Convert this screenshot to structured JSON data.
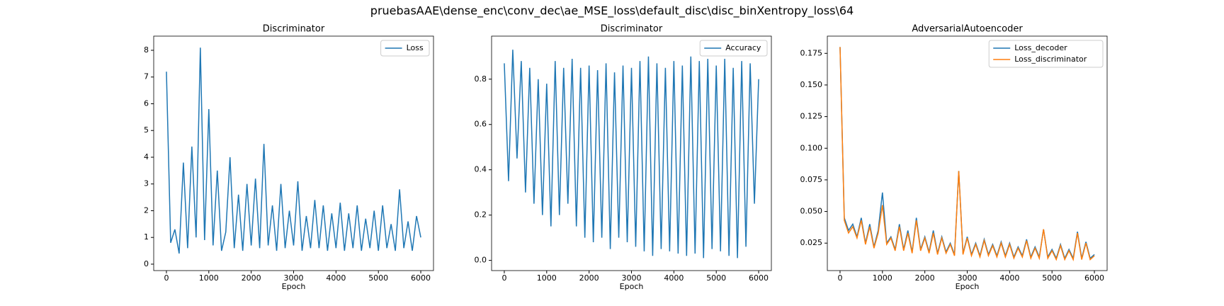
{
  "title": "pruebasAAE\\dense_enc\\conv_dec\\ae_MSE_loss\\default_disc\\disc_binXentropy_loss\\64",
  "chart_data": [
    {
      "type": "line",
      "title": "Discriminator",
      "xlabel": "Epoch",
      "legend": "upper right",
      "grid": false,
      "x": [
        0,
        100,
        200,
        300,
        400,
        500,
        600,
        700,
        800,
        900,
        1000,
        1100,
        1200,
        1300,
        1400,
        1500,
        1600,
        1700,
        1800,
        1900,
        2000,
        2100,
        2200,
        2300,
        2400,
        2500,
        2600,
        2700,
        2800,
        2900,
        3000,
        3100,
        3200,
        3300,
        3400,
        3500,
        3600,
        3700,
        3800,
        3900,
        4000,
        4100,
        4200,
        4300,
        4400,
        4500,
        4600,
        4700,
        4800,
        4900,
        5000,
        5100,
        5200,
        5300,
        5400,
        5500,
        5600,
        5700,
        5800,
        5900,
        6000
      ],
      "xlim": [
        -300,
        6300
      ],
      "xticks": [
        0,
        1000,
        2000,
        3000,
        4000,
        5000,
        6000
      ],
      "ylim": [
        -0.24,
        8.53
      ],
      "yticks": [
        0,
        1,
        2,
        3,
        4,
        5,
        6,
        7,
        8
      ],
      "series": [
        {
          "name": "Loss",
          "color": "#1f77b4",
          "values": [
            7.2,
            0.8,
            1.3,
            0.4,
            3.8,
            0.6,
            4.4,
            1.0,
            8.1,
            0.9,
            5.8,
            0.7,
            3.5,
            0.5,
            1.2,
            4.0,
            0.6,
            2.6,
            0.5,
            3.0,
            0.7,
            3.2,
            0.6,
            4.5,
            0.7,
            2.2,
            0.5,
            3.0,
            0.6,
            2.0,
            0.7,
            3.1,
            0.5,
            1.8,
            0.6,
            2.4,
            0.6,
            2.2,
            0.5,
            1.9,
            0.6,
            2.3,
            0.5,
            1.9,
            0.6,
            2.2,
            0.5,
            1.7,
            0.6,
            2.0,
            0.5,
            2.2,
            0.6,
            1.5,
            0.5,
            2.8,
            0.6,
            1.6,
            0.5,
            1.8,
            1.0
          ]
        }
      ]
    },
    {
      "type": "line",
      "title": "Discriminator",
      "xlabel": "Epoch",
      "legend": "upper right",
      "grid": false,
      "x": [
        0,
        100,
        200,
        300,
        400,
        500,
        600,
        700,
        800,
        900,
        1000,
        1100,
        1200,
        1300,
        1400,
        1500,
        1600,
        1700,
        1800,
        1900,
        2000,
        2100,
        2200,
        2300,
        2400,
        2500,
        2600,
        2700,
        2800,
        2900,
        3000,
        3100,
        3200,
        3300,
        3400,
        3500,
        3600,
        3700,
        3800,
        3900,
        4000,
        4100,
        4200,
        4300,
        4400,
        4500,
        4600,
        4700,
        4800,
        4900,
        5000,
        5100,
        5200,
        5300,
        5400,
        5500,
        5600,
        5700,
        5800,
        5900,
        6000
      ],
      "xlim": [
        -300,
        6300
      ],
      "xticks": [
        0,
        1000,
        2000,
        3000,
        4000,
        5000,
        6000
      ],
      "ylim": [
        -0.045,
        0.99
      ],
      "yticks": [
        {
          "value": 0,
          "label": "0.0"
        },
        0.2,
        0.4,
        0.6,
        0.8
      ],
      "series": [
        {
          "name": "Accuracy",
          "color": "#1f77b4",
          "values": [
            0.87,
            0.35,
            0.93,
            0.45,
            0.88,
            0.3,
            0.85,
            0.25,
            0.8,
            0.2,
            0.78,
            0.15,
            0.88,
            0.2,
            0.85,
            0.25,
            0.89,
            0.15,
            0.85,
            0.1,
            0.86,
            0.08,
            0.84,
            0.1,
            0.87,
            0.05,
            0.83,
            0.1,
            0.86,
            0.08,
            0.85,
            0.06,
            0.88,
            0.04,
            0.9,
            0.02,
            0.87,
            0.05,
            0.85,
            0.04,
            0.88,
            0.03,
            0.86,
            0.02,
            0.9,
            0.03,
            0.88,
            0.01,
            0.89,
            0.05,
            0.86,
            0.04,
            0.89,
            0.02,
            0.85,
            0.01,
            0.88,
            0.06,
            0.87,
            0.25,
            0.8
          ]
        }
      ]
    },
    {
      "type": "line",
      "title": "AdversarialAutoencoder",
      "xlabel": "Epoch",
      "legend": "upper right",
      "grid": false,
      "x": [
        0,
        100,
        200,
        300,
        400,
        500,
        600,
        700,
        800,
        900,
        1000,
        1100,
        1200,
        1300,
        1400,
        1500,
        1600,
        1700,
        1800,
        1900,
        2000,
        2100,
        2200,
        2300,
        2400,
        2500,
        2600,
        2700,
        2800,
        2900,
        3000,
        3100,
        3200,
        3300,
        3400,
        3500,
        3600,
        3700,
        3800,
        3900,
        4000,
        4100,
        4200,
        4300,
        4400,
        4500,
        4600,
        4700,
        4800,
        4900,
        5000,
        5100,
        5200,
        5300,
        5400,
        5500,
        5600,
        5700,
        5800,
        5900,
        6000
      ],
      "xlim": [
        -300,
        6300
      ],
      "xticks": [
        0,
        1000,
        2000,
        3000,
        4000,
        5000,
        6000
      ],
      "ylim": [
        0.0033,
        0.1886
      ],
      "yticks": [
        0.025,
        {
          "value": 0.05,
          "label": "0.050"
        },
        0.075,
        {
          "value": 0.1,
          "label": "0.100"
        },
        0.125,
        {
          "value": 0.15,
          "label": "0.150"
        },
        0.175
      ],
      "series": [
        {
          "name": "Loss_decoder",
          "color": "#1f77b4",
          "values": [
            0.18,
            0.045,
            0.035,
            0.04,
            0.03,
            0.045,
            0.025,
            0.04,
            0.022,
            0.035,
            0.065,
            0.025,
            0.03,
            0.02,
            0.04,
            0.02,
            0.035,
            0.018,
            0.045,
            0.02,
            0.03,
            0.018,
            0.035,
            0.017,
            0.03,
            0.018,
            0.025,
            0.016,
            0.082,
            0.017,
            0.03,
            0.016,
            0.025,
            0.015,
            0.028,
            0.016,
            0.024,
            0.015,
            0.026,
            0.015,
            0.025,
            0.014,
            0.022,
            0.015,
            0.028,
            0.014,
            0.022,
            0.014,
            0.036,
            0.014,
            0.02,
            0.013,
            0.024,
            0.013,
            0.02,
            0.013,
            0.034,
            0.013,
            0.026,
            0.013,
            0.016
          ]
        },
        {
          "name": "Loss_discriminator",
          "color": "#ff7f0e",
          "values": [
            0.18,
            0.043,
            0.033,
            0.038,
            0.029,
            0.043,
            0.024,
            0.038,
            0.021,
            0.033,
            0.055,
            0.024,
            0.029,
            0.019,
            0.038,
            0.019,
            0.033,
            0.017,
            0.043,
            0.019,
            0.029,
            0.017,
            0.033,
            0.016,
            0.029,
            0.017,
            0.024,
            0.015,
            0.082,
            0.016,
            0.029,
            0.015,
            0.024,
            0.014,
            0.027,
            0.015,
            0.023,
            0.014,
            0.025,
            0.014,
            0.024,
            0.013,
            0.021,
            0.014,
            0.027,
            0.013,
            0.021,
            0.013,
            0.036,
            0.013,
            0.019,
            0.012,
            0.023,
            0.012,
            0.019,
            0.012,
            0.033,
            0.012,
            0.025,
            0.012,
            0.015
          ]
        }
      ]
    }
  ]
}
